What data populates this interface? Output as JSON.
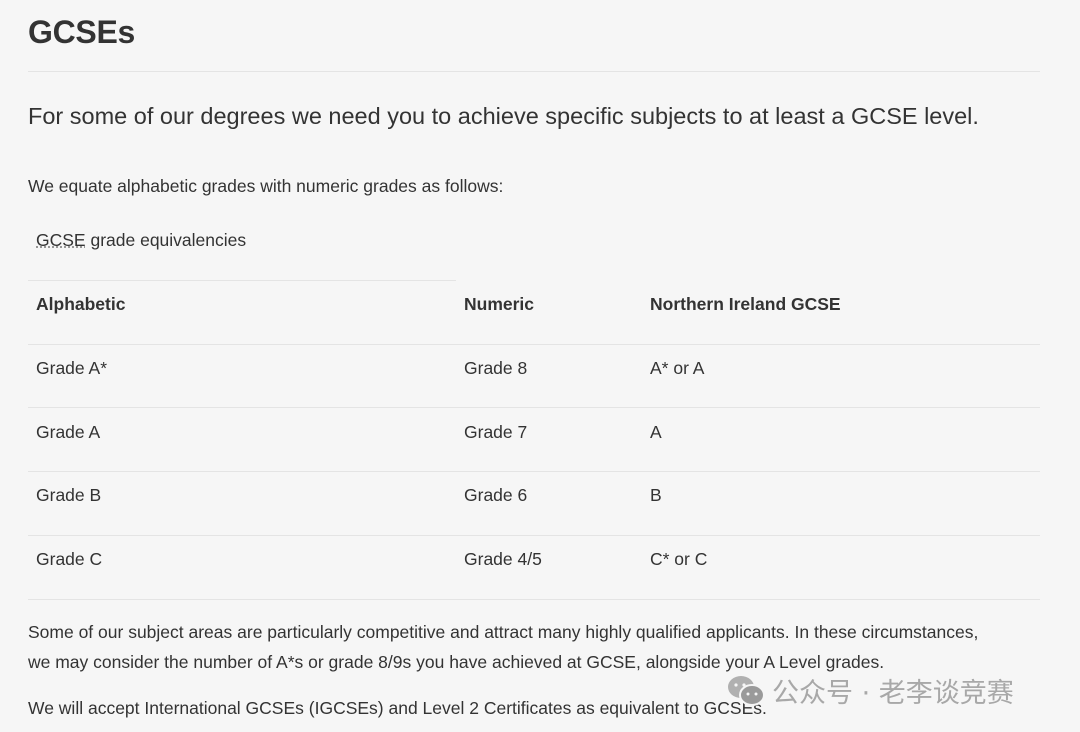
{
  "title": "GCSEs",
  "lead": "For some of our degrees we need you to achieve specific subjects to at least a GCSE level.",
  "intro": "We equate alphabetic grades with numeric grades as follows:",
  "table": {
    "caption_abbr": "GCSE",
    "caption_rest": " grade equivalencies",
    "headers": [
      "Alphabetic",
      "Numeric",
      "Northern Ireland GCSE"
    ],
    "rows": [
      [
        "Grade A*",
        "Grade 8",
        "A* or A"
      ],
      [
        "Grade A",
        "Grade 7",
        "A"
      ],
      [
        "Grade B",
        "Grade 6",
        "B"
      ],
      [
        "Grade C",
        "Grade 4/5",
        "C* or C"
      ]
    ]
  },
  "para1_line1": "Some of our subject areas are particularly competitive and attract many highly qualified applicants. In these circumstances,",
  "para1_line2": "we may consider the number of A*s or grade 8/9s you have achieved at GCSE, alongside your A Level grades.",
  "para2": "We will accept International GCSEs (IGCSEs) and Level 2 Certificates as equivalent to GCSEs.",
  "watermark": "公众号 · 老李谈竞赛"
}
